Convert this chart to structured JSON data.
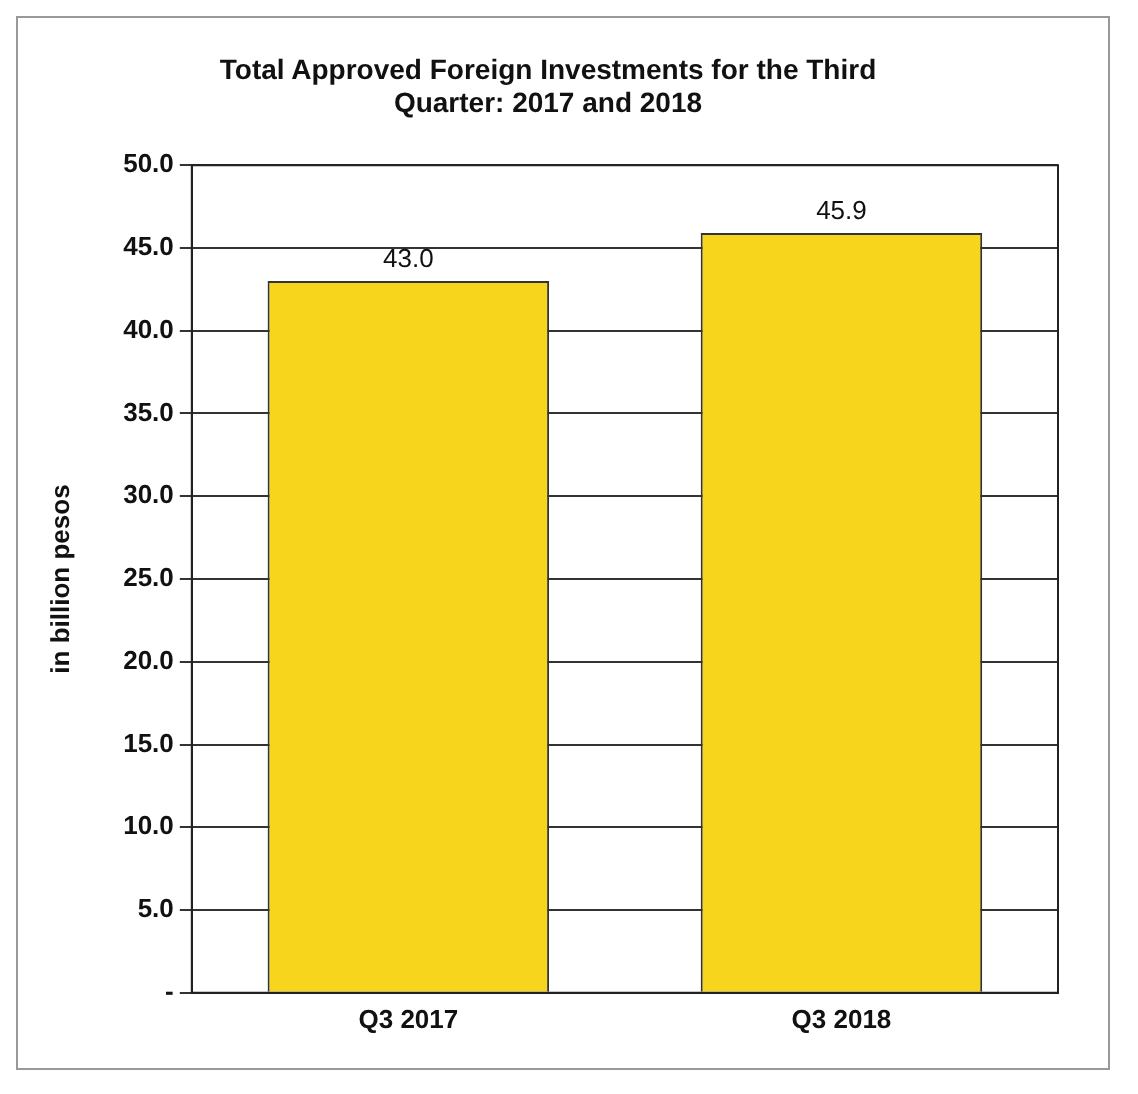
{
  "chart_data": {
    "type": "bar",
    "title": "Total Approved Foreign Investments for the Third\nQuarter: 2017 and 2018",
    "ylabel": "in billion pesos",
    "categories": [
      "Q3 2017",
      "Q3 2018"
    ],
    "values": [
      43.0,
      45.9
    ],
    "value_labels": [
      "43.0",
      "45.9"
    ],
    "color": "#f7d51c",
    "ylim": [
      0,
      50
    ],
    "yticks": [
      {
        "value": 0,
        "label": "-"
      },
      {
        "value": 5,
        "label": "5.0"
      },
      {
        "value": 10,
        "label": "10.0"
      },
      {
        "value": 15,
        "label": "15.0"
      },
      {
        "value": 20,
        "label": "20.0"
      },
      {
        "value": 25,
        "label": "25.0"
      },
      {
        "value": 30,
        "label": "30.0"
      },
      {
        "value": 35,
        "label": "35.0"
      },
      {
        "value": 40,
        "label": "40.0"
      },
      {
        "value": 45,
        "label": "45.0"
      },
      {
        "value": 50,
        "label": "50.0"
      }
    ],
    "grid": "y",
    "legend": false
  }
}
